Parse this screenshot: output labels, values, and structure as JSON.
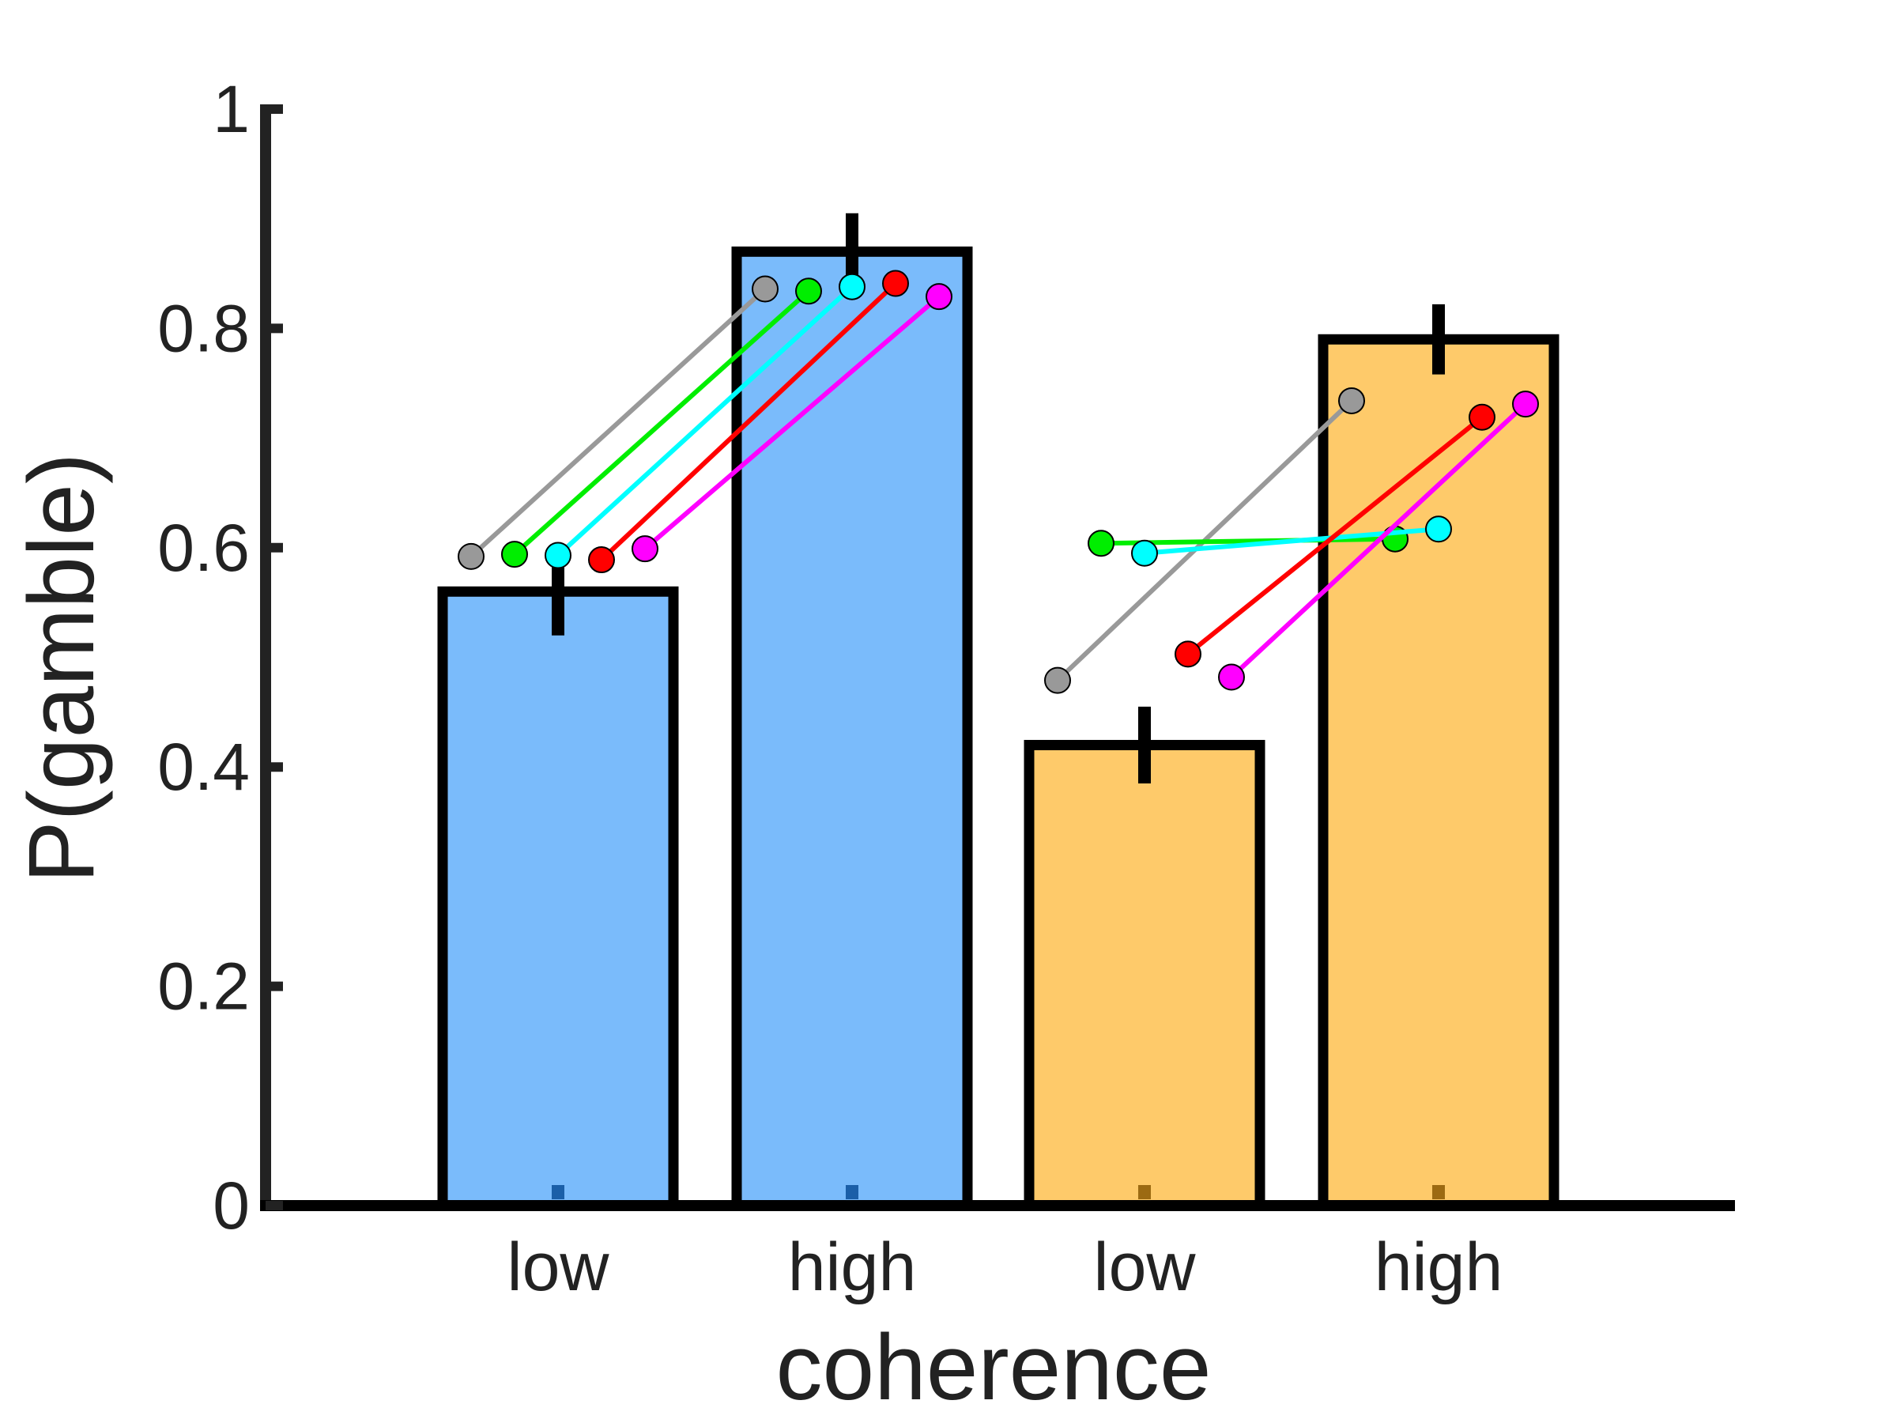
{
  "chart_data": {
    "type": "bar",
    "ylabel": "P(gamble)",
    "xlabel": "coherence",
    "ylim": [
      0,
      1
    ],
    "yticks": [
      0,
      0.2,
      0.4,
      0.6,
      0.8,
      1
    ],
    "ytick_labels": [
      "0",
      "0.2",
      "0.4",
      "0.6",
      "0.8",
      "1"
    ],
    "categories": [
      "low",
      "high",
      "low",
      "high"
    ],
    "bars": [
      {
        "label": "low",
        "value": 0.56,
        "error": 0.04,
        "color": "#7ABBFB"
      },
      {
        "label": "high",
        "value": 0.87,
        "error": 0.035,
        "color": "#7ABBFB"
      },
      {
        "label": "low",
        "value": 0.42,
        "error": 0.035,
        "color": "#FECA6A"
      },
      {
        "label": "high",
        "value": 0.79,
        "error": 0.032,
        "color": "#FECA6A"
      }
    ],
    "subject_lines": [
      {
        "group": 0,
        "color": "#999999",
        "low": 0.592,
        "high": 0.836
      },
      {
        "group": 0,
        "color": "#00EE00",
        "low": 0.594,
        "high": 0.834
      },
      {
        "group": 0,
        "color": "#00FFFF",
        "low": 0.593,
        "high": 0.838
      },
      {
        "group": 0,
        "color": "#FF0000",
        "low": 0.589,
        "high": 0.841
      },
      {
        "group": 0,
        "color": "#FF00FF",
        "low": 0.599,
        "high": 0.829
      },
      {
        "group": 1,
        "color": "#999999",
        "low": 0.479,
        "high": 0.734
      },
      {
        "group": 1,
        "color": "#00EE00",
        "low": 0.604,
        "high": 0.608
      },
      {
        "group": 1,
        "color": "#00FFFF",
        "low": 0.595,
        "high": 0.617
      },
      {
        "group": 1,
        "color": "#FF0000",
        "low": 0.503,
        "high": 0.719
      },
      {
        "group": 1,
        "color": "#FF00FF",
        "low": 0.482,
        "high": 0.731
      }
    ],
    "grid": false,
    "legend": "none"
  }
}
